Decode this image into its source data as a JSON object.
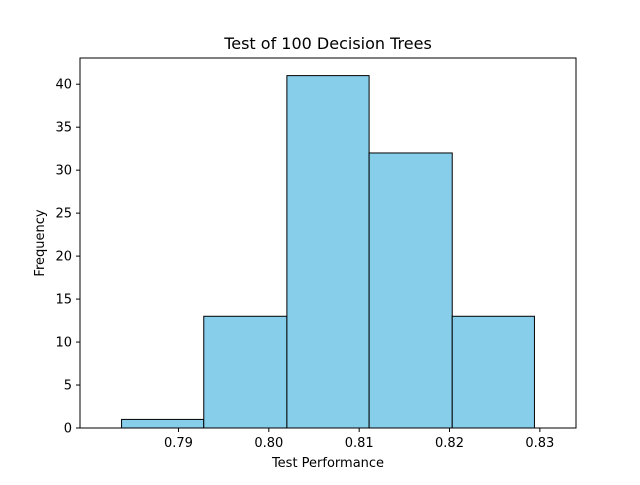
{
  "chart_data": {
    "type": "bar",
    "title": "Test of 100 Decision Trees",
    "xlabel": "Test Performance",
    "ylabel": "Frequency",
    "bins": [
      {
        "start": 0.7837,
        "end": 0.7928,
        "count": 1
      },
      {
        "start": 0.7928,
        "end": 0.802,
        "count": 13
      },
      {
        "start": 0.802,
        "end": 0.8111,
        "count": 41
      },
      {
        "start": 0.8111,
        "end": 0.8203,
        "count": 32
      },
      {
        "start": 0.8203,
        "end": 0.8294,
        "count": 13
      }
    ],
    "xlim": [
      0.7791,
      0.834
    ],
    "ylim": [
      0,
      43.05
    ],
    "xticks": [
      0.79,
      0.8,
      0.81,
      0.82,
      0.83
    ],
    "xtick_labels": [
      "0.79",
      "0.80",
      "0.81",
      "0.82",
      "0.83"
    ],
    "yticks": [
      0,
      5,
      10,
      15,
      20,
      25,
      30,
      35,
      40
    ],
    "ytick_labels": [
      "0",
      "5",
      "10",
      "15",
      "20",
      "25",
      "30",
      "35",
      "40"
    ],
    "bar_color": "#87ceeb",
    "edge_color": "#000000",
    "grid": false,
    "legend": "none"
  }
}
